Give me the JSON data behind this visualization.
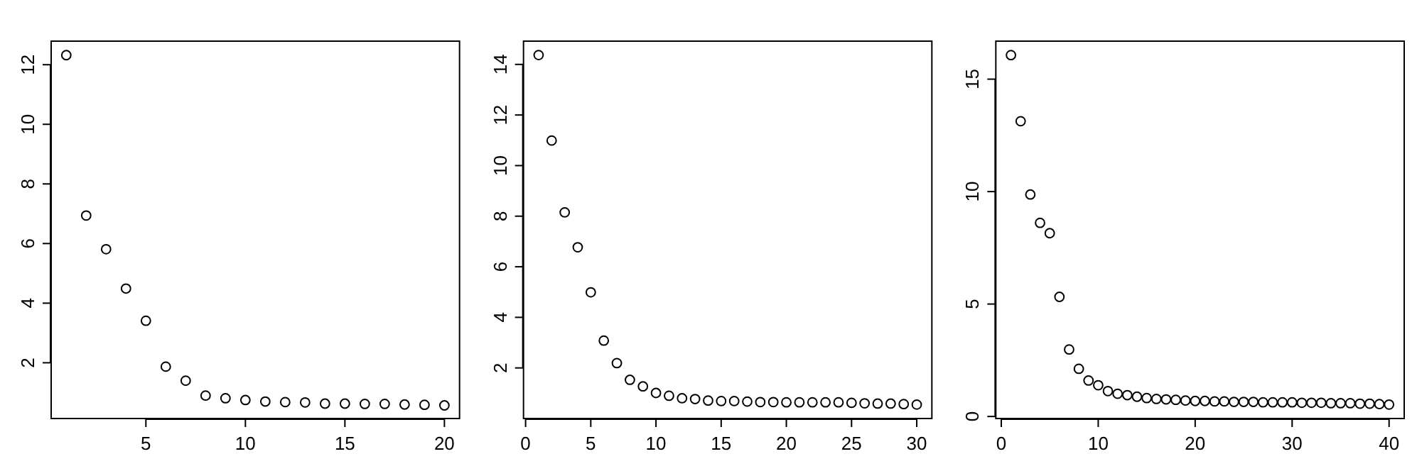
{
  "chart_data": [
    {
      "type": "scatter",
      "marker": "circle",
      "grid": false,
      "xlim": [
        0.24,
        20.76
      ],
      "ylim": [
        0.13,
        12.79
      ],
      "xticks": [
        5,
        10,
        15,
        20
      ],
      "yticks": [
        2,
        4,
        6,
        8,
        10,
        12
      ],
      "x": [
        1,
        2,
        3,
        4,
        5,
        6,
        7,
        8,
        9,
        10,
        11,
        12,
        13,
        14,
        15,
        16,
        17,
        18,
        19,
        20
      ],
      "series": [
        {
          "color": "#000000",
          "values": [
            12.32,
            6.94,
            5.81,
            4.49,
            3.41,
            1.87,
            1.4,
            0.9,
            0.81,
            0.75,
            0.7,
            0.68,
            0.67,
            0.63,
            0.63,
            0.62,
            0.62,
            0.6,
            0.59,
            0.57
          ]
        }
      ]
    },
    {
      "type": "scatter",
      "marker": "circle",
      "grid": false,
      "xlim": [
        -0.16,
        31.16
      ],
      "ylim": [
        0.0,
        14.92
      ],
      "xticks": [
        0,
        5,
        10,
        15,
        20,
        25,
        30
      ],
      "yticks": [
        2,
        4,
        6,
        8,
        10,
        12,
        14
      ],
      "x": [
        1,
        2,
        3,
        4,
        5,
        6,
        7,
        8,
        9,
        10,
        11,
        12,
        13,
        14,
        15,
        16,
        17,
        18,
        19,
        20,
        21,
        22,
        23,
        24,
        25,
        26,
        27,
        28,
        29,
        30
      ],
      "series": [
        {
          "color": "#000000",
          "values": [
            14.37,
            10.99,
            8.15,
            6.77,
            4.99,
            3.08,
            2.19,
            1.53,
            1.27,
            1.01,
            0.9,
            0.8,
            0.77,
            0.71,
            0.69,
            0.69,
            0.67,
            0.65,
            0.65,
            0.64,
            0.64,
            0.64,
            0.64,
            0.64,
            0.62,
            0.6,
            0.59,
            0.59,
            0.57,
            0.55
          ]
        }
      ]
    },
    {
      "type": "scatter",
      "marker": "circle",
      "grid": false,
      "xlim": [
        -0.56,
        41.56
      ],
      "ylim": [
        -0.09,
        16.69
      ],
      "xticks": [
        0,
        10,
        20,
        30,
        40
      ],
      "yticks": [
        0,
        5,
        10,
        15
      ],
      "x": [
        1,
        2,
        3,
        4,
        5,
        6,
        7,
        8,
        9,
        10,
        11,
        12,
        13,
        14,
        15,
        16,
        17,
        18,
        19,
        20,
        21,
        22,
        23,
        24,
        25,
        26,
        27,
        28,
        29,
        30,
        31,
        32,
        33,
        34,
        35,
        36,
        37,
        38,
        39,
        40
      ],
      "series": [
        {
          "color": "#000000",
          "values": [
            16.07,
            13.13,
            9.87,
            8.61,
            8.15,
            5.32,
            2.98,
            2.12,
            1.6,
            1.39,
            1.13,
            1.01,
            0.95,
            0.88,
            0.82,
            0.78,
            0.76,
            0.74,
            0.71,
            0.69,
            0.69,
            0.67,
            0.67,
            0.65,
            0.65,
            0.65,
            0.63,
            0.63,
            0.63,
            0.63,
            0.61,
            0.61,
            0.61,
            0.59,
            0.59,
            0.59,
            0.57,
            0.57,
            0.55,
            0.53
          ]
        }
      ]
    }
  ]
}
